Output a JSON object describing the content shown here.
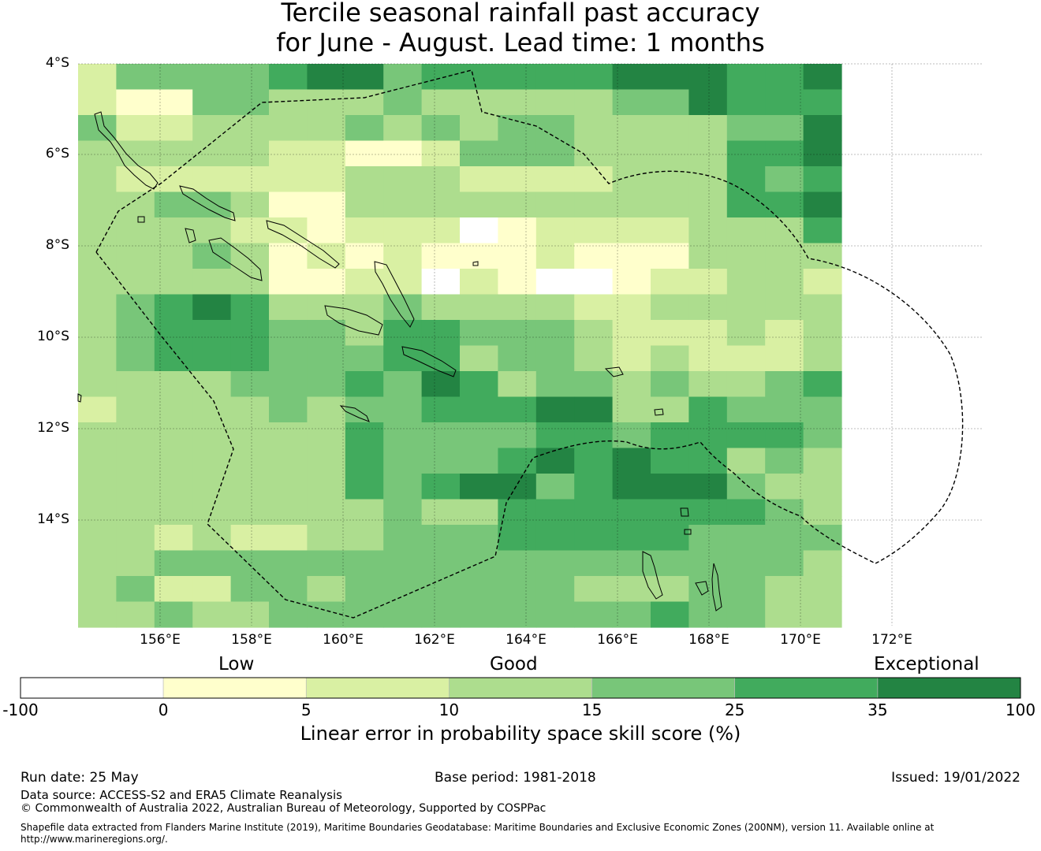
{
  "title_line1": "Tercile seasonal rainfall past accuracy",
  "title_line2": "for June - August. Lead time: 1 months",
  "lat_ticks": [
    "4°S",
    "6°S",
    "8°S",
    "10°S",
    "12°S",
    "14°S"
  ],
  "lon_ticks": [
    "156°E",
    "158°E",
    "160°E",
    "162°E",
    "164°E",
    "166°E",
    "168°E",
    "170°E",
    "172°E"
  ],
  "colorbar": {
    "categories": [
      "Low",
      "Good",
      "Exceptional"
    ],
    "values": [
      "-100",
      "0",
      "5",
      "10",
      "15",
      "25",
      "35",
      "100"
    ],
    "colors": [
      "#ffffff",
      "#ffffcc",
      "#d9f0a3",
      "#addd8e",
      "#78c679",
      "#41ab5d",
      "#238443"
    ],
    "label": "Linear error in probability space skill score (%)"
  },
  "footer": {
    "run_date": "Run date: 25 May",
    "base_period": "Base period: 1981-2018",
    "issued": "Issued: 19/01/2022",
    "data_source": "Data source: ACCESS-S2 and ERA5 Climate Reanalysis",
    "copyright": "© Commonwealth of Australia 2022, Australian Bureau of Meteorology, Supported by COSPPac",
    "shapefile": "Shapefile data extracted from Flanders Marine Institute (2019), Maritime Boundaries Geodatabase: Maritime Boundaries and Exclusive Economic Zones (200NM), version 11. Available online at http://www.marineregions.org/."
  },
  "grid_rows": [
    "24444566455555666556",
    "21144333433333446555",
    "42233334343443333446",
    "33333221124443333556",
    "32222223332222333545",
    "33443113333333333556",
    "33332212220122223335",
    "33343121211121113333",
    "33333112202100122332",
    "34565333433332233333",
    "34555443554443222323",
    "34555444553443232223",
    "33334445465344343345",
    "23333434455566335444",
    "33333335444455455554",
    "33333335444565655343",
    "33333335456645666433",
    "33333333433555555543",
    "33232233444555554444",
    "33444444444444444443",
    "34224434444443334433",
    "33433444444444454433"
  ]
}
